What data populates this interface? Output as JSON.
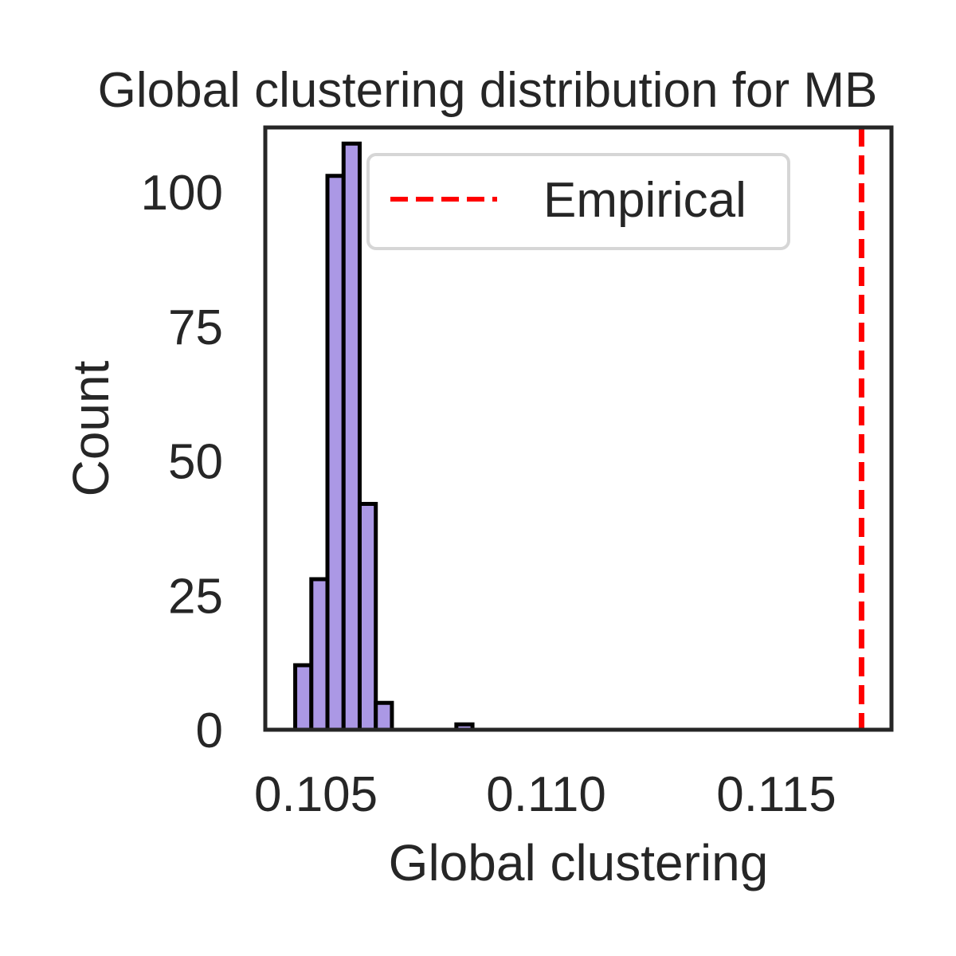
{
  "chart_data": {
    "type": "bar",
    "title": "Global clustering distribution for MB",
    "xlabel": "Global clustering",
    "ylabel": "Count",
    "xlim": [
      0.1039,
      0.1175
    ],
    "ylim": [
      0,
      112
    ],
    "xticks": [
      0.105,
      0.11,
      0.115
    ],
    "xtick_labels": [
      "0.105",
      "0.110",
      "0.115"
    ],
    "yticks": [
      0,
      25,
      50,
      75,
      100
    ],
    "ytick_labels": [
      "0",
      "25",
      "50",
      "75",
      "100"
    ],
    "bin_edges": [
      0.10455,
      0.1049,
      0.10525,
      0.1056,
      0.10595,
      0.1063,
      0.10665,
      0.107,
      0.10735,
      0.1077,
      0.10805,
      0.1084
    ],
    "counts": [
      12,
      28,
      103,
      109,
      42,
      5,
      0,
      0,
      0,
      0,
      1
    ],
    "bar_color": "#ab98e5",
    "bar_edge_color": "#000000",
    "empirical_line": {
      "x": 0.11685,
      "color": "#ff0000",
      "label": "Empirical"
    },
    "legend": {
      "position": "top-right"
    },
    "grid": false
  }
}
